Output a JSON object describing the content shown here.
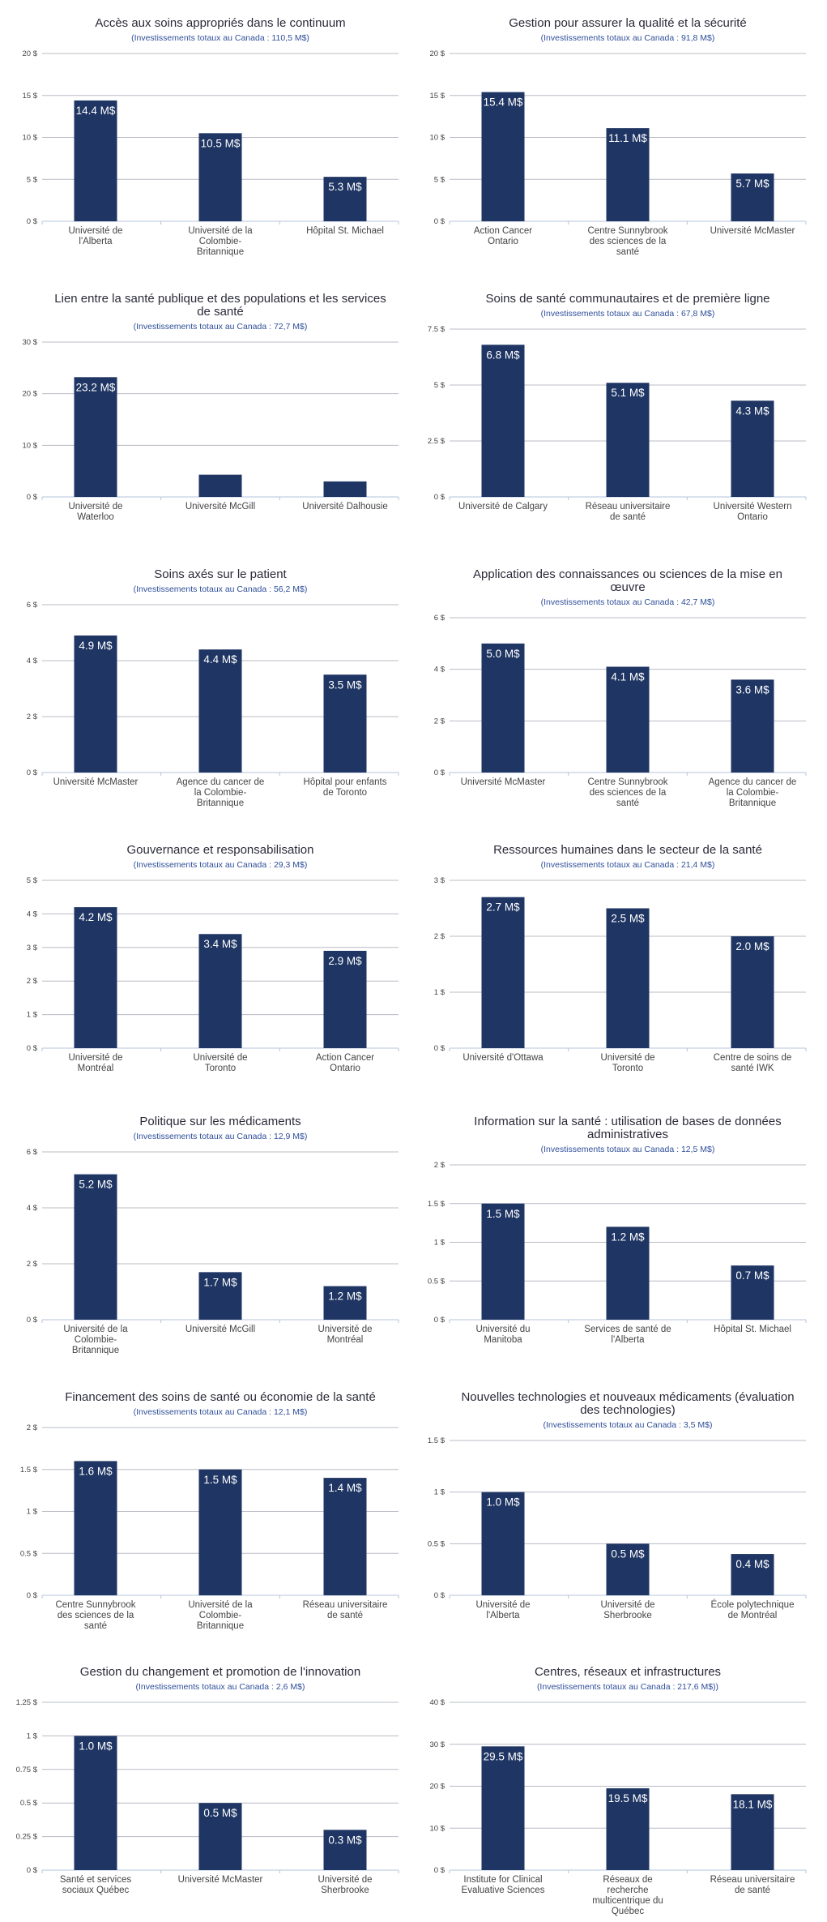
{
  "colors": {
    "bar": "#1f3563",
    "grid": "#b9bcc6",
    "axis": "#b6c4dd",
    "title": "#2b2b3a",
    "subtitle": "#2f4f9a"
  },
  "chart_data": [
    {
      "type": "bar",
      "title": [
        "Accès aux soins appropriés dans le continuum"
      ],
      "subtitle": "(Investissements totaux au Canada : 110,5 M$)",
      "categories": [
        [
          "Université de",
          "l'Alberta"
        ],
        [
          "Université de la",
          "Colombie-",
          "Britannique"
        ],
        [
          "Hôpital St. Michael"
        ]
      ],
      "values": [
        14.4,
        10.5,
        5.3
      ],
      "data_labels": [
        "14.4 M$",
        "10.5 M$",
        "5.3 M$"
      ],
      "ylim": [
        0,
        20
      ],
      "yticks": [
        0,
        5,
        10,
        15,
        20
      ],
      "ytick_labels": [
        "0 $",
        "5 $",
        "10 $",
        "15 $",
        "20 $"
      ],
      "grid": true,
      "legend": "none"
    },
    {
      "type": "bar",
      "title": [
        "Gestion pour assurer la qualité et la sécurité"
      ],
      "subtitle": "(Investissements totaux au Canada : 91,8 M$)",
      "categories": [
        [
          "Action Cancer",
          "Ontario"
        ],
        [
          "Centre Sunnybrook",
          "des sciences de la",
          "santé"
        ],
        [
          "Université McMaster"
        ]
      ],
      "values": [
        15.4,
        11.1,
        5.7
      ],
      "data_labels": [
        "15.4 M$",
        "11.1 M$",
        "5.7 M$"
      ],
      "ylim": [
        0,
        20
      ],
      "yticks": [
        0,
        5,
        10,
        15,
        20
      ],
      "ytick_labels": [
        "0 $",
        "5 $",
        "10 $",
        "15 $",
        "20 $"
      ],
      "grid": true,
      "legend": "none"
    },
    {
      "type": "bar",
      "title": [
        "Lien entre la santé publique et des populations et les services",
        "de santé"
      ],
      "subtitle": "(Investissements totaux au Canada : 72,7 M$)",
      "categories": [
        [
          "Université de",
          "Waterloo"
        ],
        [
          "Université McGill"
        ],
        [
          "Université Dalhousie"
        ]
      ],
      "values": [
        23.2,
        4.3,
        3.0
      ],
      "data_labels": [
        "23.2 M$",
        "",
        ""
      ],
      "ylim": [
        0,
        30
      ],
      "yticks": [
        0,
        10,
        20,
        30
      ],
      "ytick_labels": [
        "0 $",
        "10 $",
        "20 $",
        "30 $"
      ],
      "grid": true,
      "legend": "none"
    },
    {
      "type": "bar",
      "title": [
        "Soins de santé communautaires et de première ligne"
      ],
      "subtitle": "(Investissements totaux au Canada : 67,8 M$)",
      "categories": [
        [
          "Université de Calgary"
        ],
        [
          "Réseau universitaire",
          "de santé"
        ],
        [
          "Université Western",
          "Ontario"
        ]
      ],
      "values": [
        6.8,
        5.1,
        4.3
      ],
      "data_labels": [
        "6.8 M$",
        "5.1 M$",
        "4.3 M$"
      ],
      "ylim": [
        0,
        7.5
      ],
      "yticks": [
        0,
        2.5,
        5,
        7.5
      ],
      "ytick_labels": [
        "0 $",
        "2.5 $",
        "5 $",
        "7.5 $"
      ],
      "grid": true,
      "legend": "none"
    },
    {
      "type": "bar",
      "title": [
        "Soins axés sur le patient"
      ],
      "subtitle": "(Investissements totaux au Canada : 56,2 M$)",
      "categories": [
        [
          "Université McMaster"
        ],
        [
          "Agence du cancer de",
          "la Colombie-",
          "Britannique"
        ],
        [
          "Hôpital pour enfants",
          "de Toronto"
        ]
      ],
      "values": [
        4.9,
        4.4,
        3.5
      ],
      "data_labels": [
        "4.9 M$",
        "4.4 M$",
        "3.5 M$"
      ],
      "ylim": [
        0,
        6
      ],
      "yticks": [
        0,
        2,
        4,
        6
      ],
      "ytick_labels": [
        "0 $",
        "2 $",
        "4 $",
        "6 $"
      ],
      "grid": true,
      "legend": "none"
    },
    {
      "type": "bar",
      "title": [
        "Application des connaissances ou sciences de la mise en",
        "œuvre"
      ],
      "subtitle": "(Investissements totaux au Canada : 42,7 M$)",
      "categories": [
        [
          "Université McMaster"
        ],
        [
          "Centre Sunnybrook",
          "des sciences de la",
          "santé"
        ],
        [
          "Agence du cancer de",
          "la Colombie-",
          "Britannique"
        ]
      ],
      "values": [
        5.0,
        4.1,
        3.6
      ],
      "data_labels": [
        "5.0 M$",
        "4.1 M$",
        "3.6 M$"
      ],
      "ylim": [
        0,
        6
      ],
      "yticks": [
        0,
        2,
        4,
        6
      ],
      "ytick_labels": [
        "0 $",
        "2 $",
        "4 $",
        "6 $"
      ],
      "grid": true,
      "legend": "none"
    },
    {
      "type": "bar",
      "title": [
        "Gouvernance et responsabilisation"
      ],
      "subtitle": "(Investissements totaux au Canada : 29,3 M$)",
      "categories": [
        [
          "Université de",
          "Montréal"
        ],
        [
          "Université de",
          "Toronto"
        ],
        [
          "Action Cancer",
          "Ontario"
        ]
      ],
      "values": [
        4.2,
        3.4,
        2.9
      ],
      "data_labels": [
        "4.2 M$",
        "3.4 M$",
        "2.9 M$"
      ],
      "ylim": [
        0,
        5
      ],
      "yticks": [
        0,
        1,
        2,
        3,
        4,
        5
      ],
      "ytick_labels": [
        "0 $",
        "1 $",
        "2 $",
        "3 $",
        "4 $",
        "5 $"
      ],
      "grid": true,
      "legend": "none"
    },
    {
      "type": "bar",
      "title": [
        "Ressources humaines dans le secteur de la santé"
      ],
      "subtitle": "(Investissements totaux au Canada : 21,4 M$)",
      "categories": [
        [
          "Université d'Ottawa"
        ],
        [
          "Université de",
          "Toronto"
        ],
        [
          "Centre de soins de",
          "santé IWK"
        ]
      ],
      "values": [
        2.7,
        2.5,
        2.0
      ],
      "data_labels": [
        "2.7 M$",
        "2.5 M$",
        "2.0 M$"
      ],
      "ylim": [
        0,
        3
      ],
      "yticks": [
        0,
        1,
        2,
        3
      ],
      "ytick_labels": [
        "0 $",
        "1 $",
        "2 $",
        "3 $"
      ],
      "grid": true,
      "legend": "none"
    },
    {
      "type": "bar",
      "title": [
        "Politique sur les médicaments"
      ],
      "subtitle": "(Investissements totaux au Canada : 12,9 M$)",
      "categories": [
        [
          "Université de la",
          "Colombie-",
          "Britannique"
        ],
        [
          "Université McGill"
        ],
        [
          "Université de",
          "Montréal"
        ]
      ],
      "values": [
        5.2,
        1.7,
        1.2
      ],
      "data_labels": [
        "5.2 M$",
        "1.7 M$",
        "1.2 M$"
      ],
      "ylim": [
        0,
        6
      ],
      "yticks": [
        0,
        2,
        4,
        6
      ],
      "ytick_labels": [
        "0 $",
        "2 $",
        "4 $",
        "6 $"
      ],
      "grid": true,
      "legend": "none"
    },
    {
      "type": "bar",
      "title": [
        "Information sur la santé : utilisation de bases de données",
        "administratives"
      ],
      "subtitle": "(Investissements totaux au Canada : 12,5 M$)",
      "categories": [
        [
          "Université du",
          "Manitoba"
        ],
        [
          "Services de santé de",
          "l'Alberta"
        ],
        [
          "Hôpital St. Michael"
        ]
      ],
      "values": [
        1.5,
        1.2,
        0.7
      ],
      "data_labels": [
        "1.5 M$",
        "1.2 M$",
        "0.7 M$"
      ],
      "ylim": [
        0,
        2
      ],
      "yticks": [
        0,
        0.5,
        1,
        1.5,
        2
      ],
      "ytick_labels": [
        "0 $",
        "0.5 $",
        "1 $",
        "1.5 $",
        "2 $"
      ],
      "grid": true,
      "legend": "none"
    },
    {
      "type": "bar",
      "title": [
        "Financement des soins de santé ou économie de la santé"
      ],
      "subtitle": "(Investissements totaux au Canada : 12,1 M$)",
      "categories": [
        [
          "Centre Sunnybrook",
          "des sciences de la",
          "santé"
        ],
        [
          "Université de la",
          "Colombie-",
          "Britannique"
        ],
        [
          "Réseau universitaire",
          "de santé"
        ]
      ],
      "values": [
        1.6,
        1.5,
        1.4
      ],
      "data_labels": [
        "1.6 M$",
        "1.5 M$",
        "1.4 M$"
      ],
      "ylim": [
        0,
        2
      ],
      "yticks": [
        0,
        0.5,
        1,
        1.5,
        2
      ],
      "ytick_labels": [
        "0 $",
        "0.5 $",
        "1 $",
        "1.5 $",
        "2 $"
      ],
      "grid": true,
      "legend": "none"
    },
    {
      "type": "bar",
      "title": [
        "Nouvelles technologies et nouveaux médicaments (évaluation",
        "des technologies)"
      ],
      "subtitle": "(Investissements totaux au Canada : 3,5 M$)",
      "categories": [
        [
          "Université de",
          "l'Alberta"
        ],
        [
          "Université de",
          "Sherbrooke"
        ],
        [
          "École polytechnique",
          "de Montréal"
        ]
      ],
      "values": [
        1.0,
        0.5,
        0.4
      ],
      "data_labels": [
        "1.0 M$",
        "0.5 M$",
        "0.4 M$"
      ],
      "ylim": [
        0,
        1.5
      ],
      "yticks": [
        0,
        0.5,
        1,
        1.5
      ],
      "ytick_labels": [
        "0 $",
        "0.5 $",
        "1 $",
        "1.5 $"
      ],
      "grid": true,
      "legend": "none"
    },
    {
      "type": "bar",
      "title": [
        "Gestion du changement et promotion de l'innovation"
      ],
      "subtitle": "(Investissements totaux au Canada : 2,6 M$)",
      "categories": [
        [
          "Santé et services",
          "sociaux Québec"
        ],
        [
          "Université McMaster"
        ],
        [
          "Université de",
          "Sherbrooke"
        ]
      ],
      "values": [
        1.0,
        0.5,
        0.3
      ],
      "data_labels": [
        "1.0 M$",
        "0.5 M$",
        "0.3 M$"
      ],
      "ylim": [
        0,
        1.25
      ],
      "yticks": [
        0,
        0.25,
        0.5,
        0.75,
        1,
        1.25
      ],
      "ytick_labels": [
        "0 $",
        "0.25 $",
        "0.5 $",
        "0.75 $",
        "1 $",
        "1.25 $"
      ],
      "grid": true,
      "legend": "none"
    },
    {
      "type": "bar",
      "title": [
        "Centres, réseaux et infrastructures"
      ],
      "subtitle": "(Investissements totaux au Canada : 217,6 M$))",
      "categories": [
        [
          "Institute for Clinical",
          "Evaluative Sciences"
        ],
        [
          "Réseaux de",
          "recherche",
          "multicentrique du",
          "Québec"
        ],
        [
          "Réseau universitaire",
          "de santé"
        ]
      ],
      "values": [
        29.5,
        19.5,
        18.1
      ],
      "data_labels": [
        "29.5 M$",
        "19.5 M$",
        "18.1 M$"
      ],
      "ylim": [
        0,
        40
      ],
      "yticks": [
        0,
        10,
        20,
        30,
        40
      ],
      "ytick_labels": [
        "0 $",
        "10 $",
        "20 $",
        "30 $",
        "40 $"
      ],
      "grid": true,
      "legend": "none"
    }
  ]
}
